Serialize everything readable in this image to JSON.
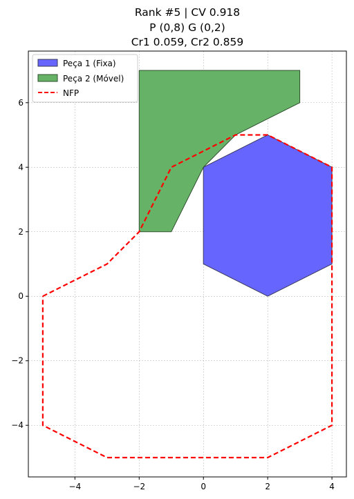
{
  "chart_data": {
    "type": "area",
    "title_lines": [
      "Rank #5 | CV 0.918",
      "P (0,8) G (0,2)",
      "Cr1 0.059, Cr2 0.859"
    ],
    "xlabel": "",
    "ylabel": "",
    "xlim": [
      -5.45,
      4.45
    ],
    "ylim": [
      -5.6,
      7.6
    ],
    "xticks": [
      -4,
      -2,
      0,
      2,
      4
    ],
    "yticks": [
      -4,
      -2,
      0,
      2,
      4,
      6
    ],
    "xtick_labels": [
      "−4",
      "−2",
      "0",
      "2",
      "4"
    ],
    "ytick_labels": [
      "−4",
      "−2",
      "0",
      "2",
      "4",
      "6"
    ],
    "grid": true,
    "legend_position": "top-left",
    "series": [
      {
        "name": "Peça 1 (Fixa)",
        "kind": "polygon",
        "color": "#6666ff",
        "edge": "#3a3a5a",
        "points": [
          [
            0,
            1
          ],
          [
            0,
            4
          ],
          [
            2,
            5
          ],
          [
            4,
            4
          ],
          [
            4,
            1
          ],
          [
            2,
            0
          ]
        ]
      },
      {
        "name": "Peça 2 (Móvel)",
        "kind": "polygon",
        "color": "#66b266",
        "edge": "#2f4f2f",
        "points": [
          [
            -2,
            2
          ],
          [
            -2,
            7
          ],
          [
            3,
            7
          ],
          [
            3,
            6
          ],
          [
            1,
            5
          ],
          [
            0,
            4
          ],
          [
            -1,
            2
          ]
        ]
      },
      {
        "name": "NFP",
        "kind": "dashed-line",
        "color": "#ff0000",
        "points": [
          [
            -5,
            0
          ],
          [
            -3,
            1
          ],
          [
            -2,
            2
          ],
          [
            -1,
            4
          ],
          [
            1,
            5
          ],
          [
            2,
            5
          ],
          [
            4,
            4
          ],
          [
            4,
            -4
          ],
          [
            2,
            -5
          ],
          [
            -3,
            -5
          ],
          [
            -5,
            -4
          ],
          [
            -5,
            0
          ]
        ]
      }
    ]
  }
}
